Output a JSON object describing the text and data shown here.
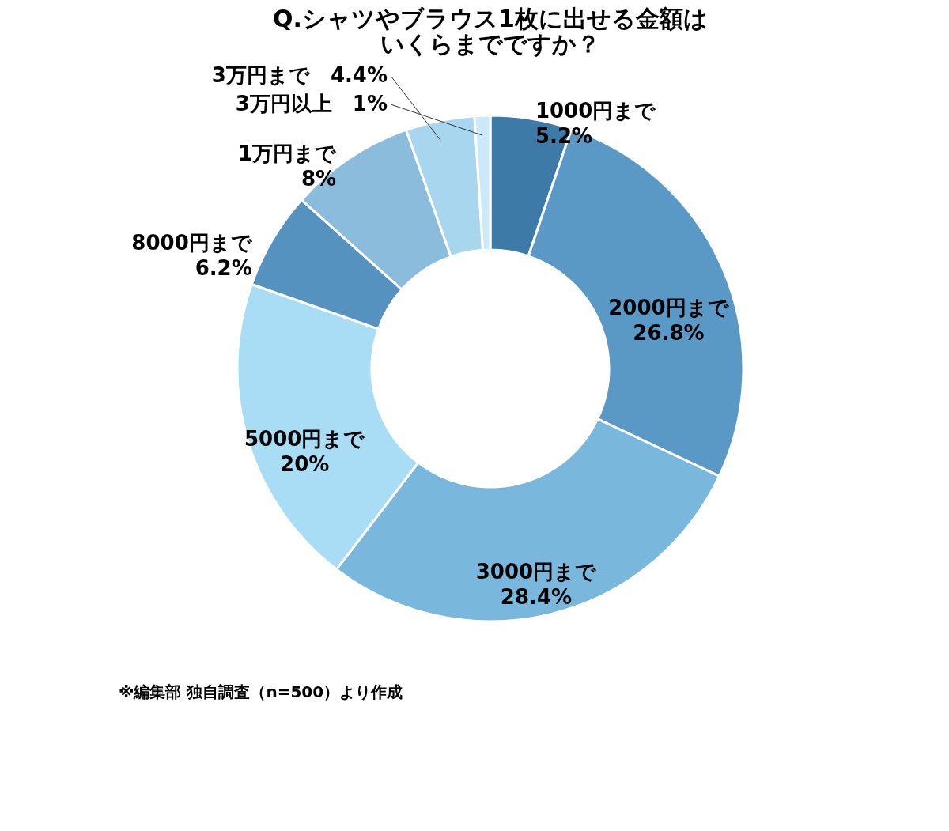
{
  "chart_data": {
    "type": "donut",
    "title": "Q.シャツやブラウス1枚に出せる金額はいくらまでですか？",
    "categories": [
      "1000円まで",
      "2000円まで",
      "3000円まで",
      "5000円まで",
      "8000円まで",
      "1万円まで",
      "3万円まで",
      "3万円以上"
    ],
    "values": [
      5.2,
      26.8,
      28.4,
      20,
      6.2,
      8,
      4.4,
      1
    ],
    "value_labels": [
      "5.2%",
      "26.8%",
      "28.4%",
      "20%",
      "6.2%",
      "8%",
      "4.4%",
      "1%"
    ],
    "colors": [
      "#3d7aa8",
      "#5a99c6",
      "#7ab7dc",
      "#a9dcf5",
      "#5692bf",
      "#8bbcdc",
      "#a9d6ef",
      "#cbe9f8"
    ],
    "annotations": [
      "※編集部 独自調査（n=500）より作成"
    ]
  }
}
